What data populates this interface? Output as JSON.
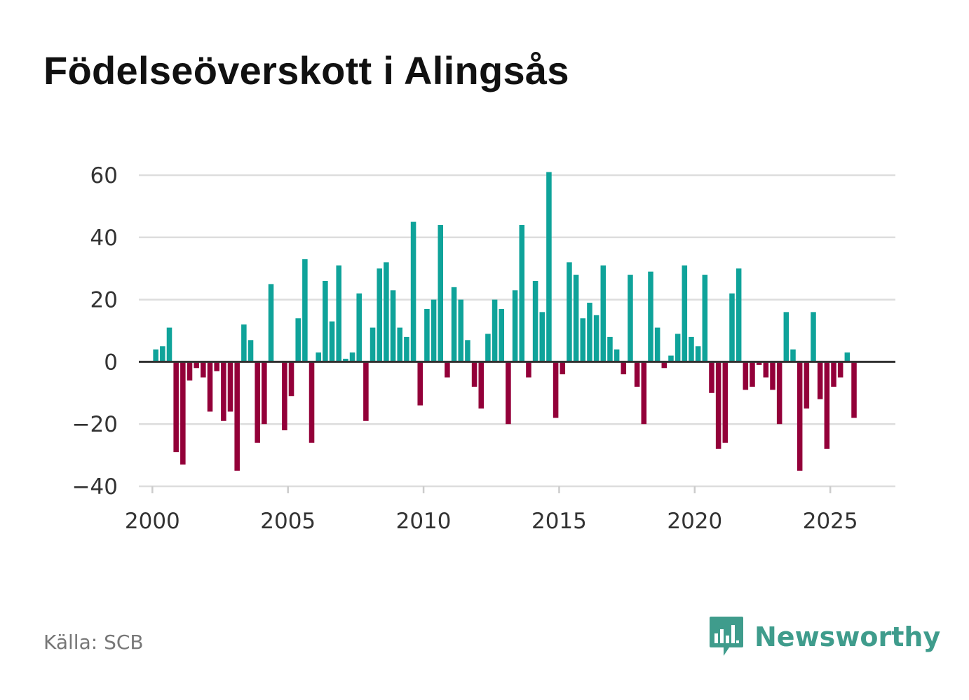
{
  "title": "Födelseöverskott i Alingsås",
  "source": "Källa: SCB",
  "brand": {
    "name": "Newsworthy",
    "icon": "newsworthy-logo-icon",
    "color": "#3f9c8c"
  },
  "colors": {
    "positive": "#0fa39a",
    "negative": "#930039",
    "grid": "#dddddd",
    "zero_line": "#333333",
    "axis": "#cccccc"
  },
  "chart_data": {
    "type": "bar",
    "title": "Födelseöverskott i Alingsås",
    "xlabel": "",
    "ylabel": "",
    "frequency": "quarterly",
    "first_period": "2000 Q1",
    "ylim": [
      -40,
      60
    ],
    "xlim": [
      1999.5,
      2027.4
    ],
    "yticks": [
      60,
      40,
      20,
      0,
      -20,
      -40
    ],
    "ytick_labels": [
      "60",
      "40",
      "20",
      "0",
      "−20",
      "−40"
    ],
    "xticks": [
      2000,
      2005,
      2010,
      2015,
      2020,
      2025
    ],
    "xtick_labels": [
      "2000",
      "2005",
      "2010",
      "2015",
      "2020",
      "2025"
    ],
    "values": [
      4,
      5,
      11,
      -29,
      -33,
      -6,
      -2,
      -5,
      -16,
      -3,
      -19,
      -16,
      -35,
      12,
      7,
      -26,
      -20,
      25,
      0,
      -22,
      -11,
      14,
      33,
      -26,
      3,
      26,
      13,
      31,
      1,
      3,
      22,
      -19,
      11,
      30,
      32,
      23,
      11,
      8,
      45,
      -14,
      17,
      20,
      44,
      -5,
      24,
      20,
      7,
      -8,
      -15,
      9,
      20,
      17,
      -20,
      23,
      44,
      -5,
      26,
      16,
      61,
      -18,
      -4,
      32,
      28,
      14,
      19,
      15,
      31,
      8,
      4,
      -4,
      28,
      -8,
      -20,
      29,
      11,
      -2,
      2,
      9,
      31,
      8,
      5,
      28,
      -10,
      -28,
      -26,
      22,
      30,
      -9,
      -8,
      -1,
      -5,
      -9,
      -20,
      16,
      4,
      -35,
      -15,
      16,
      -12,
      -28,
      -8,
      -5,
      3,
      -18
    ]
  }
}
